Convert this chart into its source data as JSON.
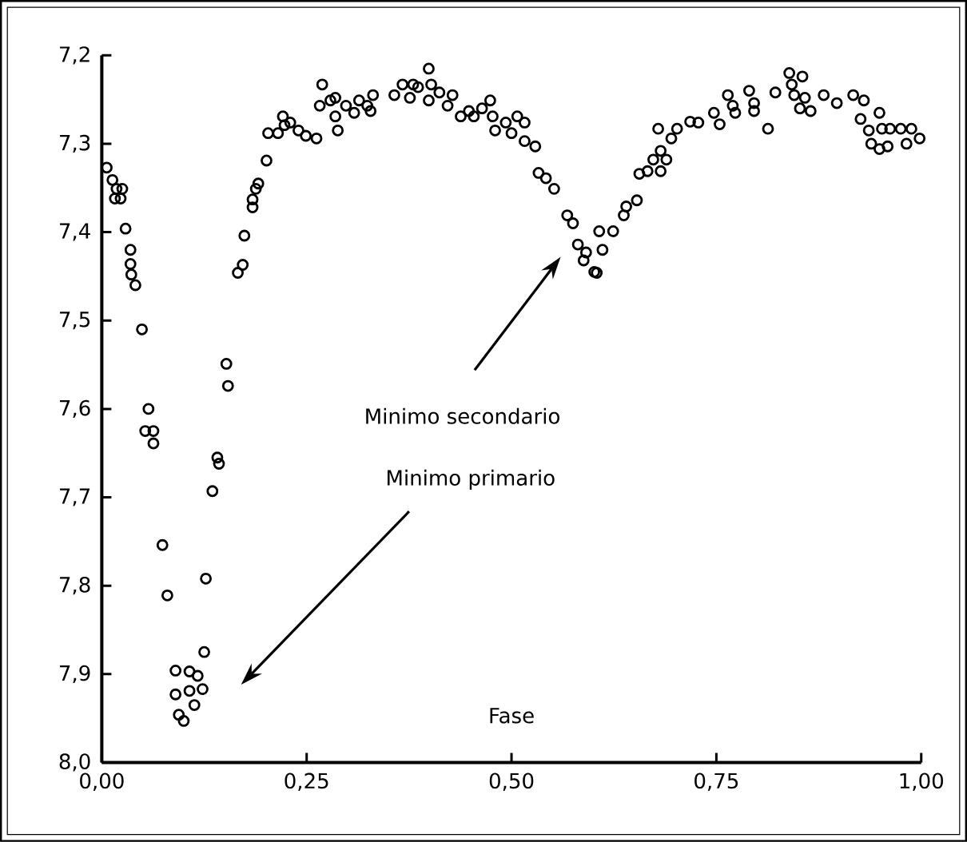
{
  "chart_data": {
    "type": "scatter",
    "xlabel": "Fase",
    "annotations": [
      "Minimo secondario",
      "Minimo primario"
    ],
    "x": [
      0.006,
      0.013,
      0.018,
      0.025,
      0.016,
      0.023,
      0.029,
      0.035,
      0.035,
      0.036,
      0.041,
      0.049,
      0.057,
      0.053,
      0.063,
      0.063,
      0.074,
      0.08,
      0.09,
      0.107,
      0.117,
      0.09,
      0.107,
      0.123,
      0.113,
      0.094,
      0.1,
      0.125,
      0.127,
      0.135,
      0.141,
      0.143,
      0.152,
      0.154,
      0.166,
      0.172,
      0.174,
      0.184,
      0.184,
      0.188,
      0.191,
      0.201,
      0.203,
      0.215,
      0.223,
      0.221,
      0.23,
      0.24,
      0.249,
      0.262,
      0.269,
      0.266,
      0.279,
      0.285,
      0.285,
      0.288,
      0.298,
      0.308,
      0.314,
      0.324,
      0.331,
      0.328,
      0.357,
      0.367,
      0.376,
      0.38,
      0.386,
      0.399,
      0.399,
      0.402,
      0.412,
      0.422,
      0.428,
      0.438,
      0.448,
      0.454,
      0.464,
      0.474,
      0.477,
      0.48,
      0.493,
      0.5,
      0.507,
      0.516,
      0.516,
      0.529,
      0.533,
      0.542,
      0.552,
      0.568,
      0.575,
      0.581,
      0.591,
      0.588,
      0.601,
      0.607,
      0.611,
      0.604,
      0.624,
      0.637,
      0.64,
      0.653,
      0.656,
      0.666,
      0.673,
      0.682,
      0.689,
      0.682,
      0.679,
      0.695,
      0.702,
      0.718,
      0.728,
      0.747,
      0.754,
      0.764,
      0.77,
      0.773,
      0.79,
      0.796,
      0.796,
      0.813,
      0.822,
      0.839,
      0.842,
      0.845,
      0.855,
      0.858,
      0.852,
      0.865,
      0.881,
      0.897,
      0.917,
      0.93,
      0.926,
      0.936,
      0.949,
      0.952,
      0.939,
      0.949,
      0.959,
      0.962,
      0.975,
      0.988,
      0.982,
      0.998
    ],
    "values": [
      7.327,
      7.341,
      7.351,
      7.351,
      7.362,
      7.362,
      7.396,
      7.42,
      7.436,
      7.448,
      7.46,
      7.51,
      7.6,
      7.625,
      7.625,
      7.639,
      7.754,
      7.811,
      7.896,
      7.897,
      7.902,
      7.923,
      7.919,
      7.917,
      7.935,
      7.946,
      7.953,
      7.875,
      7.792,
      7.693,
      7.655,
      7.662,
      7.549,
      7.574,
      7.446,
      7.437,
      7.404,
      7.372,
      7.363,
      7.351,
      7.345,
      7.319,
      7.288,
      7.288,
      7.279,
      7.269,
      7.276,
      7.285,
      7.291,
      7.294,
      7.233,
      7.257,
      7.251,
      7.248,
      7.269,
      7.285,
      7.257,
      7.265,
      7.251,
      7.257,
      7.245,
      7.263,
      7.245,
      7.233,
      7.248,
      7.233,
      7.236,
      7.215,
      7.251,
      7.233,
      7.242,
      7.257,
      7.245,
      7.269,
      7.263,
      7.269,
      7.26,
      7.251,
      7.269,
      7.285,
      7.276,
      7.288,
      7.269,
      7.276,
      7.297,
      7.303,
      7.333,
      7.339,
      7.351,
      7.381,
      7.39,
      7.414,
      7.423,
      7.432,
      7.445,
      7.399,
      7.42,
      7.446,
      7.399,
      7.381,
      7.371,
      7.364,
      7.334,
      7.331,
      7.318,
      7.308,
      7.318,
      7.331,
      7.283,
      7.294,
      7.283,
      7.275,
      7.276,
      7.265,
      7.278,
      7.245,
      7.257,
      7.265,
      7.24,
      7.254,
      7.263,
      7.283,
      7.242,
      7.22,
      7.233,
      7.245,
      7.224,
      7.248,
      7.26,
      7.263,
      7.245,
      7.254,
      7.245,
      7.251,
      7.272,
      7.285,
      7.265,
      7.283,
      7.3,
      7.306,
      7.303,
      7.283,
      7.283,
      7.283,
      7.3,
      7.294
    ],
    "color": "#000000",
    "marker": "circle",
    "xlim": [
      0,
      1
    ],
    "xticks": [
      {
        "value": 0,
        "label": "0,00"
      },
      {
        "value": 0.25,
        "label": "0,25"
      },
      {
        "value": 0.5,
        "label": "0,50"
      },
      {
        "value": 0.75,
        "label": "0,75"
      },
      {
        "value": 1,
        "label": "1,00"
      }
    ],
    "ylim": [
      8.0,
      7.2
    ],
    "yticks": [
      {
        "value": 7.2,
        "label": "7,2"
      },
      {
        "value": 7.3,
        "label": "7,3"
      },
      {
        "value": 7.4,
        "label": "7,4"
      },
      {
        "value": 7.5,
        "label": "7,5"
      },
      {
        "value": 7.6,
        "label": "7,6"
      },
      {
        "value": 7.7,
        "label": "7,7"
      },
      {
        "value": 7.8,
        "label": "7,8"
      },
      {
        "value": 7.9,
        "label": "7,9"
      },
      {
        "value": 8.0,
        "label": "8,0"
      }
    ]
  }
}
